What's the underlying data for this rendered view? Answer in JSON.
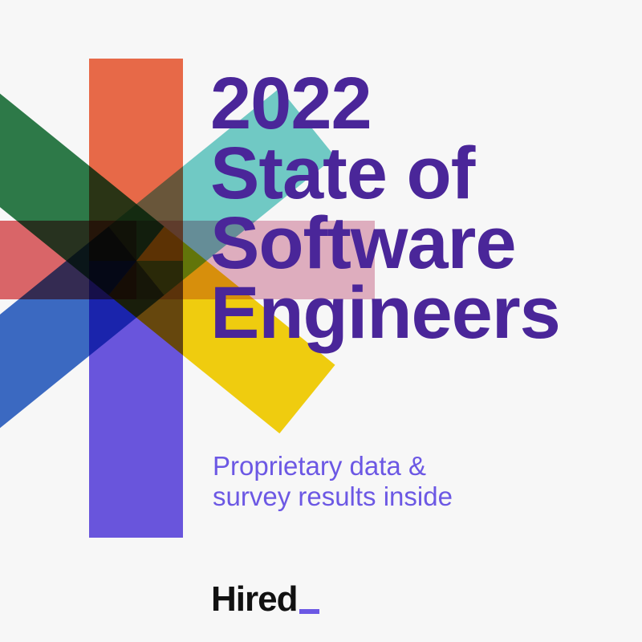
{
  "cover": {
    "title_lines": [
      "2022",
      "State of",
      "Software",
      "Engineers"
    ],
    "subtitle_lines": [
      "Proprietary data &",
      "survey results inside"
    ],
    "logo": "Hired",
    "colors": {
      "title": "#4a2699",
      "subtitle": "#6c58e4",
      "orange": "#ef6c4a",
      "purple": "#6c58e4",
      "green": "#2e7d4a",
      "yellow": "#f7d30f",
      "teal": "#74d0cb",
      "blue": "#3d6cc8",
      "red": "#e0686b",
      "pink": "#e6b3c4"
    }
  }
}
